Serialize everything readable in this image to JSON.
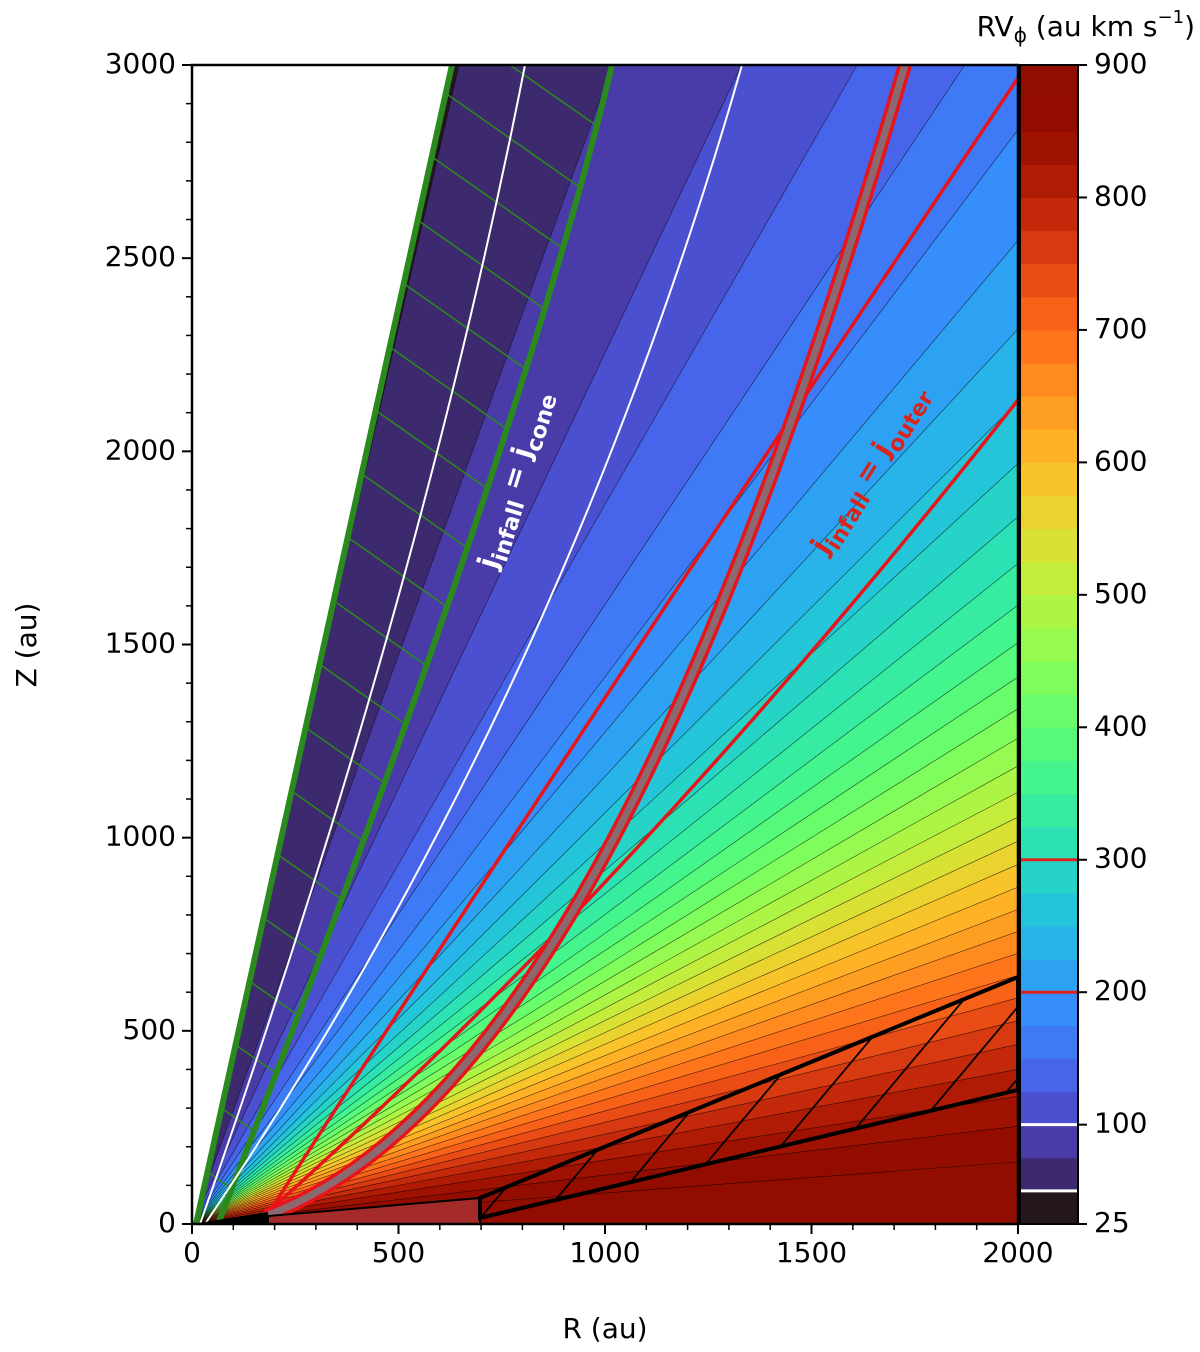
{
  "chart_data": {
    "type": "contour",
    "xlabel": "R (au)",
    "ylabel": "Z (au)",
    "xlim": [
      0,
      2000
    ],
    "ylim": [
      0,
      3000
    ],
    "xticks": [
      0,
      500,
      1000,
      1500,
      2000
    ],
    "yticks": [
      0,
      500,
      1000,
      1500,
      2000,
      2500,
      3000
    ],
    "minor_ticks": true,
    "colormap": "turbo",
    "levels": [
      25,
      50,
      75,
      100,
      125,
      150,
      175,
      200,
      225,
      250,
      275,
      300,
      325,
      350,
      375,
      400,
      425,
      450,
      475,
      500,
      525,
      550,
      575,
      600,
      625,
      650,
      675,
      700,
      725,
      750,
      775,
      800,
      825,
      850,
      875,
      900
    ],
    "colorbar": {
      "label": [
        {
          "text": "RV"
        },
        {
          "text": "ϕ",
          "sub": true
        },
        {
          "text": " (au km s"
        },
        {
          "text": "−1",
          "sup": true
        },
        {
          "text": ")"
        }
      ],
      "lim": [
        25,
        900
      ],
      "ticks": [
        25,
        100,
        200,
        300,
        400,
        500,
        600,
        700,
        800,
        900
      ],
      "marker_lines": [
        {
          "value": 50,
          "color": "#ffffff"
        },
        {
          "value": 100,
          "color": "#ffffff"
        },
        {
          "value": 200,
          "color": "#e0201b"
        },
        {
          "value": 300,
          "color": "#e0201b"
        }
      ]
    },
    "annotations": [
      {
        "color": "#ffffff",
        "segments": [
          {
            "text": "j"
          },
          {
            "text": "infall",
            "sub": true
          },
          {
            "text": " = j"
          },
          {
            "text": "cone",
            "sub": true
          }
        ]
      },
      {
        "color": "#d9231b",
        "segments": [
          {
            "text": "j"
          },
          {
            "text": "infall",
            "sub": true
          },
          {
            "text": " = j"
          },
          {
            "text": "outer",
            "sub": true
          }
        ]
      }
    ]
  }
}
